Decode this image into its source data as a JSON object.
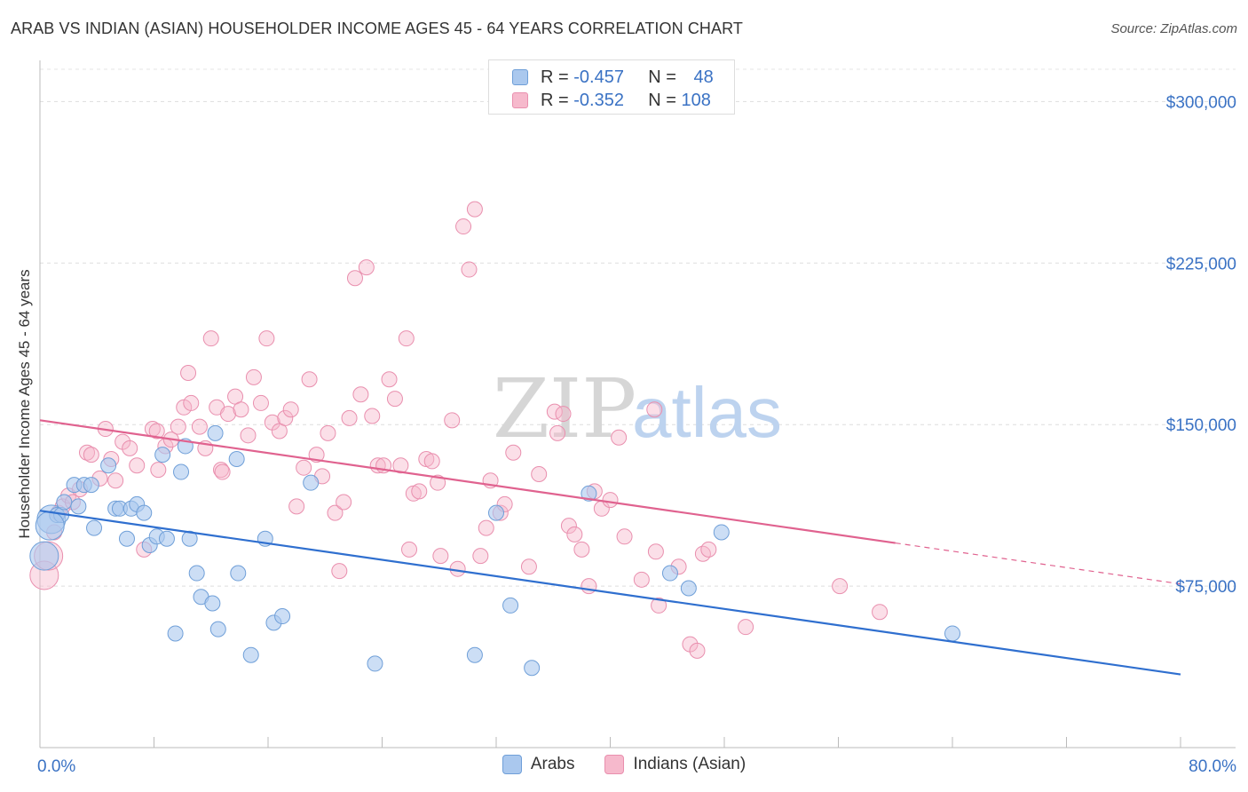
{
  "title": "ARAB VS INDIAN (ASIAN) HOUSEHOLDER INCOME AGES 45 - 64 YEARS CORRELATION CHART",
  "source": "Source: ZipAtlas.com",
  "watermark": {
    "zip": "ZIP",
    "atlas": "atlas"
  },
  "legend_top": [
    {
      "r_label": "R = ",
      "r_value": "-0.457",
      "n_label": "N = ",
      "n_value": "48"
    },
    {
      "r_label": "R = ",
      "r_value": "-0.352",
      "n_label": "N = ",
      "n_value": "108"
    }
  ],
  "legend_bottom": [
    "Arabs",
    "Indians (Asian)"
  ],
  "colors": {
    "arabs_fill": "#aac8ee",
    "arabs_stroke": "#6f9fd8",
    "arabs_line": "#2f6fcf",
    "indians_fill": "#f6b9cc",
    "indians_stroke": "#e98fae",
    "indians_line": "#e0628f",
    "tick_label": "#3a72c4"
  },
  "chart_data": {
    "type": "scatter",
    "title": "ARAB VS INDIAN (ASIAN) HOUSEHOLDER INCOME AGES 45 - 64 YEARS CORRELATION CHART",
    "xlabel": "",
    "ylabel": "Householder Income Ages 45 - 64 years",
    "xlim": [
      0,
      80
    ],
    "ylim": [
      0,
      315000
    ],
    "x_tick_labels": [
      "0.0%",
      "80.0%"
    ],
    "y_ticks": [
      75000,
      150000,
      225000,
      300000
    ],
    "y_tick_labels": [
      "$75,000",
      "$150,000",
      "$225,000",
      "$300,000"
    ],
    "series": [
      {
        "name": "Arabs",
        "r": -0.457,
        "n": 48,
        "trend": {
          "x0": 0,
          "y0": 110000,
          "x1": 80,
          "y1": 34000
        },
        "points": [
          [
            0.3,
            89000
          ],
          [
            0.8,
            106000
          ],
          [
            1.2,
            108000
          ],
          [
            1.5,
            108000
          ],
          [
            1.7,
            114000
          ],
          [
            2.4,
            122000
          ],
          [
            2.7,
            112000
          ],
          [
            3.1,
            122000
          ],
          [
            3.6,
            122000
          ],
          [
            3.8,
            102000
          ],
          [
            4.8,
            131000
          ],
          [
            5.3,
            111000
          ],
          [
            5.6,
            111000
          ],
          [
            6.1,
            97000
          ],
          [
            6.4,
            111000
          ],
          [
            6.8,
            113000
          ],
          [
            7.3,
            109000
          ],
          [
            7.7,
            94000
          ],
          [
            8.2,
            98000
          ],
          [
            8.6,
            136000
          ],
          [
            8.9,
            97000
          ],
          [
            9.5,
            53000
          ],
          [
            9.9,
            128000
          ],
          [
            10.2,
            140000
          ],
          [
            10.5,
            97000
          ],
          [
            11.0,
            81000
          ],
          [
            11.3,
            70000
          ],
          [
            12.1,
            67000
          ],
          [
            12.5,
            55000
          ],
          [
            12.3,
            146000
          ],
          [
            13.8,
            134000
          ],
          [
            13.9,
            81000
          ],
          [
            14.8,
            43000
          ],
          [
            15.8,
            97000
          ],
          [
            16.4,
            58000
          ],
          [
            17.0,
            61000
          ],
          [
            19.0,
            123000
          ],
          [
            23.5,
            39000
          ],
          [
            30.5,
            43000
          ],
          [
            32.0,
            109000
          ],
          [
            33.0,
            66000
          ],
          [
            34.5,
            37000
          ],
          [
            38.5,
            118000
          ],
          [
            44.2,
            81000
          ],
          [
            45.5,
            74000
          ],
          [
            47.8,
            100000
          ],
          [
            64.0,
            53000
          ],
          [
            0.7,
            103000
          ]
        ]
      },
      {
        "name": "Indians (Asian)",
        "r": -0.352,
        "n": 108,
        "trend": {
          "x0": 0,
          "y0": 152000,
          "x1": 60,
          "y1": 95000,
          "dash_to_x": 80,
          "dash_to_y": 76000
        },
        "points": [
          [
            0.3,
            80000
          ],
          [
            0.6,
            89000
          ],
          [
            1.0,
            100000
          ],
          [
            1.3,
            109000
          ],
          [
            1.6,
            112000
          ],
          [
            2.0,
            117000
          ],
          [
            2.3,
            114000
          ],
          [
            2.8,
            120000
          ],
          [
            3.3,
            137000
          ],
          [
            3.6,
            136000
          ],
          [
            4.2,
            125000
          ],
          [
            4.6,
            148000
          ],
          [
            5.0,
            134000
          ],
          [
            5.3,
            124000
          ],
          [
            5.8,
            142000
          ],
          [
            6.3,
            139000
          ],
          [
            6.8,
            131000
          ],
          [
            7.3,
            92000
          ],
          [
            7.9,
            148000
          ],
          [
            8.3,
            129000
          ],
          [
            8.8,
            140000
          ],
          [
            9.2,
            143000
          ],
          [
            9.7,
            149000
          ],
          [
            10.1,
            158000
          ],
          [
            10.6,
            160000
          ],
          [
            10.4,
            174000
          ],
          [
            11.2,
            149000
          ],
          [
            11.6,
            139000
          ],
          [
            12.0,
            190000
          ],
          [
            12.4,
            158000
          ],
          [
            12.7,
            129000
          ],
          [
            13.2,
            155000
          ],
          [
            13.7,
            163000
          ],
          [
            14.1,
            157000
          ],
          [
            14.6,
            145000
          ],
          [
            15.0,
            172000
          ],
          [
            15.5,
            160000
          ],
          [
            15.9,
            190000
          ],
          [
            16.3,
            151000
          ],
          [
            16.8,
            147000
          ],
          [
            17.2,
            153000
          ],
          [
            17.6,
            157000
          ],
          [
            18.0,
            112000
          ],
          [
            18.5,
            130000
          ],
          [
            18.9,
            171000
          ],
          [
            19.4,
            136000
          ],
          [
            19.8,
            126000
          ],
          [
            20.2,
            146000
          ],
          [
            20.7,
            109000
          ],
          [
            21.0,
            82000
          ],
          [
            21.3,
            114000
          ],
          [
            21.7,
            153000
          ],
          [
            22.1,
            218000
          ],
          [
            22.5,
            164000
          ],
          [
            22.9,
            223000
          ],
          [
            23.3,
            154000
          ],
          [
            23.7,
            131000
          ],
          [
            24.1,
            131000
          ],
          [
            24.5,
            171000
          ],
          [
            24.9,
            162000
          ],
          [
            25.3,
            131000
          ],
          [
            25.7,
            190000
          ],
          [
            25.9,
            92000
          ],
          [
            26.2,
            118000
          ],
          [
            26.6,
            119000
          ],
          [
            27.1,
            134000
          ],
          [
            27.5,
            133000
          ],
          [
            27.9,
            123000
          ],
          [
            28.1,
            89000
          ],
          [
            28.9,
            152000
          ],
          [
            29.3,
            83000
          ],
          [
            29.7,
            242000
          ],
          [
            30.1,
            222000
          ],
          [
            30.5,
            250000
          ],
          [
            30.9,
            89000
          ],
          [
            31.3,
            102000
          ],
          [
            31.6,
            124000
          ],
          [
            32.3,
            109000
          ],
          [
            32.6,
            113000
          ],
          [
            33.2,
            137000
          ],
          [
            34.3,
            84000
          ],
          [
            35.0,
            127000
          ],
          [
            36.1,
            156000
          ],
          [
            36.3,
            146000
          ],
          [
            37.1,
            103000
          ],
          [
            37.5,
            99000
          ],
          [
            38.0,
            92000
          ],
          [
            38.5,
            75000
          ],
          [
            38.9,
            119000
          ],
          [
            39.4,
            111000
          ],
          [
            40.0,
            115000
          ],
          [
            40.6,
            144000
          ],
          [
            41.0,
            98000
          ],
          [
            42.2,
            78000
          ],
          [
            43.1,
            157000
          ],
          [
            43.2,
            91000
          ],
          [
            43.4,
            66000
          ],
          [
            44.8,
            84000
          ],
          [
            45.6,
            48000
          ],
          [
            46.1,
            45000
          ],
          [
            46.5,
            90000
          ],
          [
            46.9,
            92000
          ],
          [
            49.5,
            56000
          ],
          [
            56.1,
            75000
          ],
          [
            58.9,
            63000
          ],
          [
            8.2,
            147000
          ],
          [
            12.8,
            128000
          ],
          [
            36.7,
            155000
          ]
        ]
      }
    ]
  }
}
